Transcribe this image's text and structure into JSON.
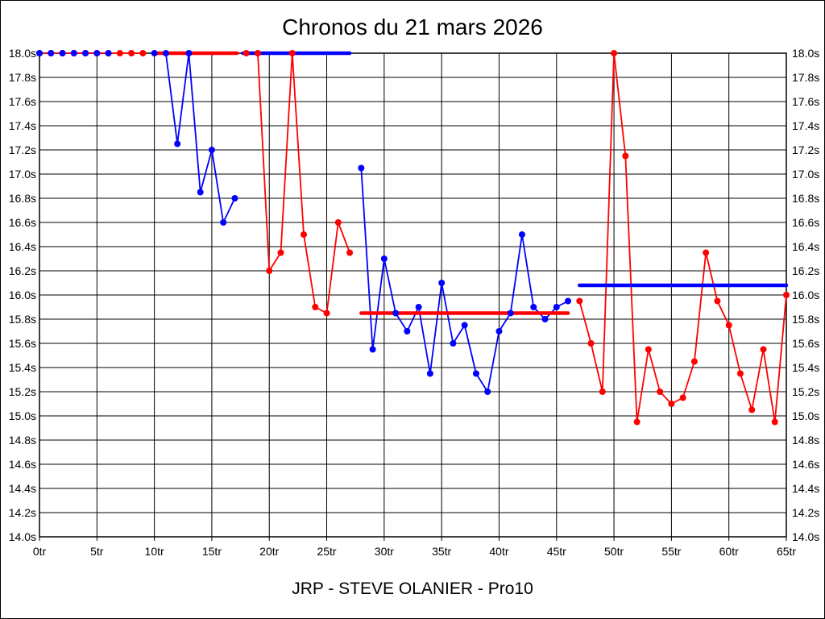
{
  "window": {
    "background": "#ffffff",
    "border_color": "#000000"
  },
  "chart_data": {
    "type": "line",
    "title": "Chronos du 21 mars 2026",
    "footer": "JRP - STEVE OLANIER - Pro10",
    "grid": true,
    "legend": "none",
    "colors": {
      "red": "#ff0000",
      "blue": "#0000ff",
      "grid": "#000000",
      "text": "#000000",
      "background": "#ffffff"
    },
    "x_axis": {
      "unit": "tr",
      "min": 0,
      "max": 65,
      "tick_step": 5,
      "tick_labels": [
        "0tr",
        "5tr",
        "10tr",
        "15tr",
        "20tr",
        "25tr",
        "30tr",
        "35tr",
        "40tr",
        "45tr",
        "50tr",
        "55tr",
        "60tr",
        "65tr"
      ]
    },
    "y_axis": {
      "unit": "s",
      "min": 14.0,
      "max": 18.0,
      "tick_step": 0.2,
      "labels_on_both_sides": true,
      "tick_labels_top_to_bottom": [
        "18.0s",
        "17.8s",
        "17.6s",
        "17.4s",
        "17.2s",
        "17.0s",
        "16.8s",
        "16.6s",
        "16.4s",
        "16.2s",
        "16.0s",
        "15.8s",
        "15.6s",
        "15.4s",
        "15.2s",
        "15.0s",
        "14.8s",
        "14.6s",
        "14.4s",
        "14.2s",
        "14.0s"
      ]
    },
    "series": [
      {
        "name": "stint-1-blue",
        "color": "blue",
        "start_lap": 0,
        "values": [
          18.0,
          18.0,
          18.0,
          18.0,
          18.0,
          18.0,
          18.0
        ]
      },
      {
        "name": "stint-2-red",
        "color": "red",
        "start_lap": 0,
        "values": [
          18.0,
          18.0,
          18.0,
          18.0,
          18.0,
          18.0,
          18.0,
          18.0,
          18.0,
          18.0
        ]
      },
      {
        "name": "stint-3-blue",
        "color": "blue",
        "start_lap": 10,
        "values": [
          18.0,
          18.0,
          17.25,
          18.0,
          16.85,
          17.2,
          16.6,
          16.8
        ]
      },
      {
        "name": "stint-4-red",
        "color": "red",
        "start_lap": 18,
        "values": [
          18.0,
          18.0,
          16.2,
          16.35,
          18.0,
          16.5,
          15.9,
          15.85,
          16.6,
          16.35
        ]
      },
      {
        "name": "stint-5-blue",
        "color": "blue",
        "start_lap": 28,
        "values": [
          17.05,
          15.55,
          16.3,
          15.85,
          15.7,
          15.9,
          15.35,
          16.1,
          15.6,
          15.75,
          15.35,
          15.2,
          15.7,
          15.85,
          16.5,
          15.9,
          15.8,
          15.9,
          15.95
        ]
      },
      {
        "name": "stint-6-red",
        "color": "red",
        "start_lap": 47,
        "values": [
          15.95,
          15.6,
          15.2,
          18.0,
          17.15,
          14.95,
          15.55,
          15.2,
          15.1,
          15.15,
          15.45,
          16.35,
          15.95,
          15.75,
          15.35,
          15.05,
          15.55,
          14.95,
          16.0
        ]
      }
    ],
    "average_lines": [
      {
        "color": "red",
        "from_lap": 10,
        "to_lap": 17.2,
        "value": 18.0
      },
      {
        "color": "blue",
        "from_lap": 17.7,
        "to_lap": 27,
        "value": 18.0
      },
      {
        "color": "red",
        "from_lap": 28,
        "to_lap": 46,
        "value": 15.85
      },
      {
        "color": "blue",
        "from_lap": 47,
        "to_lap": 65,
        "value": 16.08
      }
    ]
  }
}
